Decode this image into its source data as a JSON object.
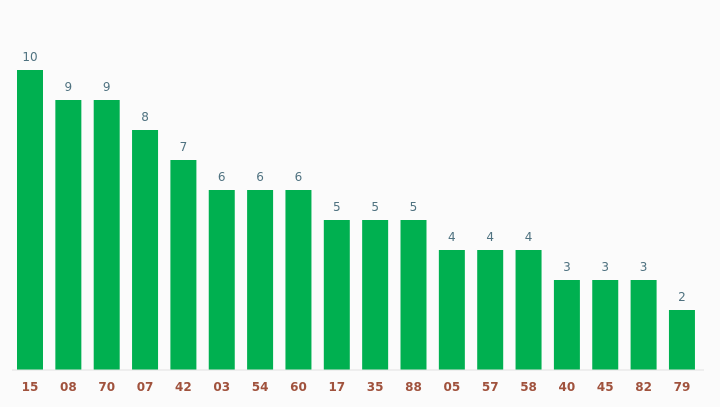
{
  "chart_data": {
    "type": "bar",
    "categories": [
      "15",
      "08",
      "70",
      "07",
      "42",
      "03",
      "54",
      "60",
      "17",
      "35",
      "88",
      "05",
      "57",
      "58",
      "40",
      "45",
      "82",
      "79"
    ],
    "values": [
      10,
      9,
      9,
      8,
      7,
      6,
      6,
      6,
      5,
      5,
      5,
      4,
      4,
      4,
      3,
      3,
      3,
      2
    ],
    "ylim": [
      0,
      10
    ],
    "grid": false,
    "colors": {
      "bar": "#00b050",
      "value_label": "#4f7280",
      "tick_label": "#a0523d",
      "baseline": "#e2e2e2",
      "background": "#fbfbfb"
    }
  }
}
